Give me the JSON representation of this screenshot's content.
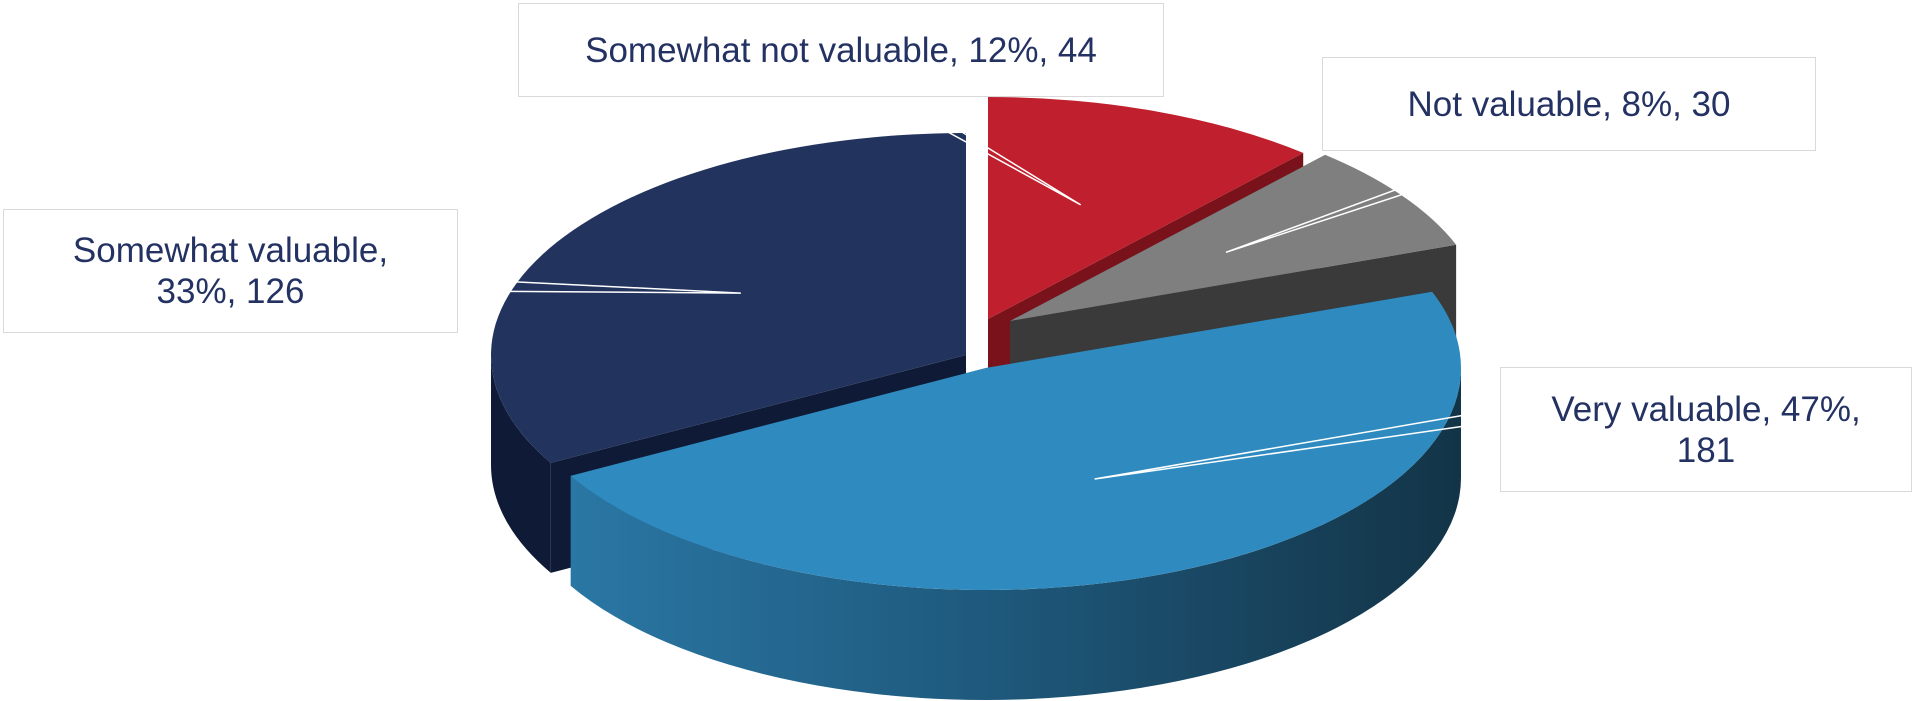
{
  "chart_data": {
    "type": "pie",
    "title": "",
    "labels": [
      "Very valuable",
      "Somewhat valuable",
      "Somewhat not valuable",
      "Not valuable"
    ],
    "values": [
      181,
      126,
      44,
      30
    ],
    "percents": [
      47,
      33,
      12,
      8
    ],
    "colors": [
      "#2f8bbf",
      "#22335d",
      "#c0202d",
      "#7f7f7f"
    ],
    "data_labels": [
      "Very valuable, 47%, 181",
      "Somewhat valuable, 33%, 126",
      "Somewhat not valuable, 12%, 44",
      "Not valuable, 8%, 30"
    ],
    "style": "3d-exploded",
    "legend": "none"
  }
}
